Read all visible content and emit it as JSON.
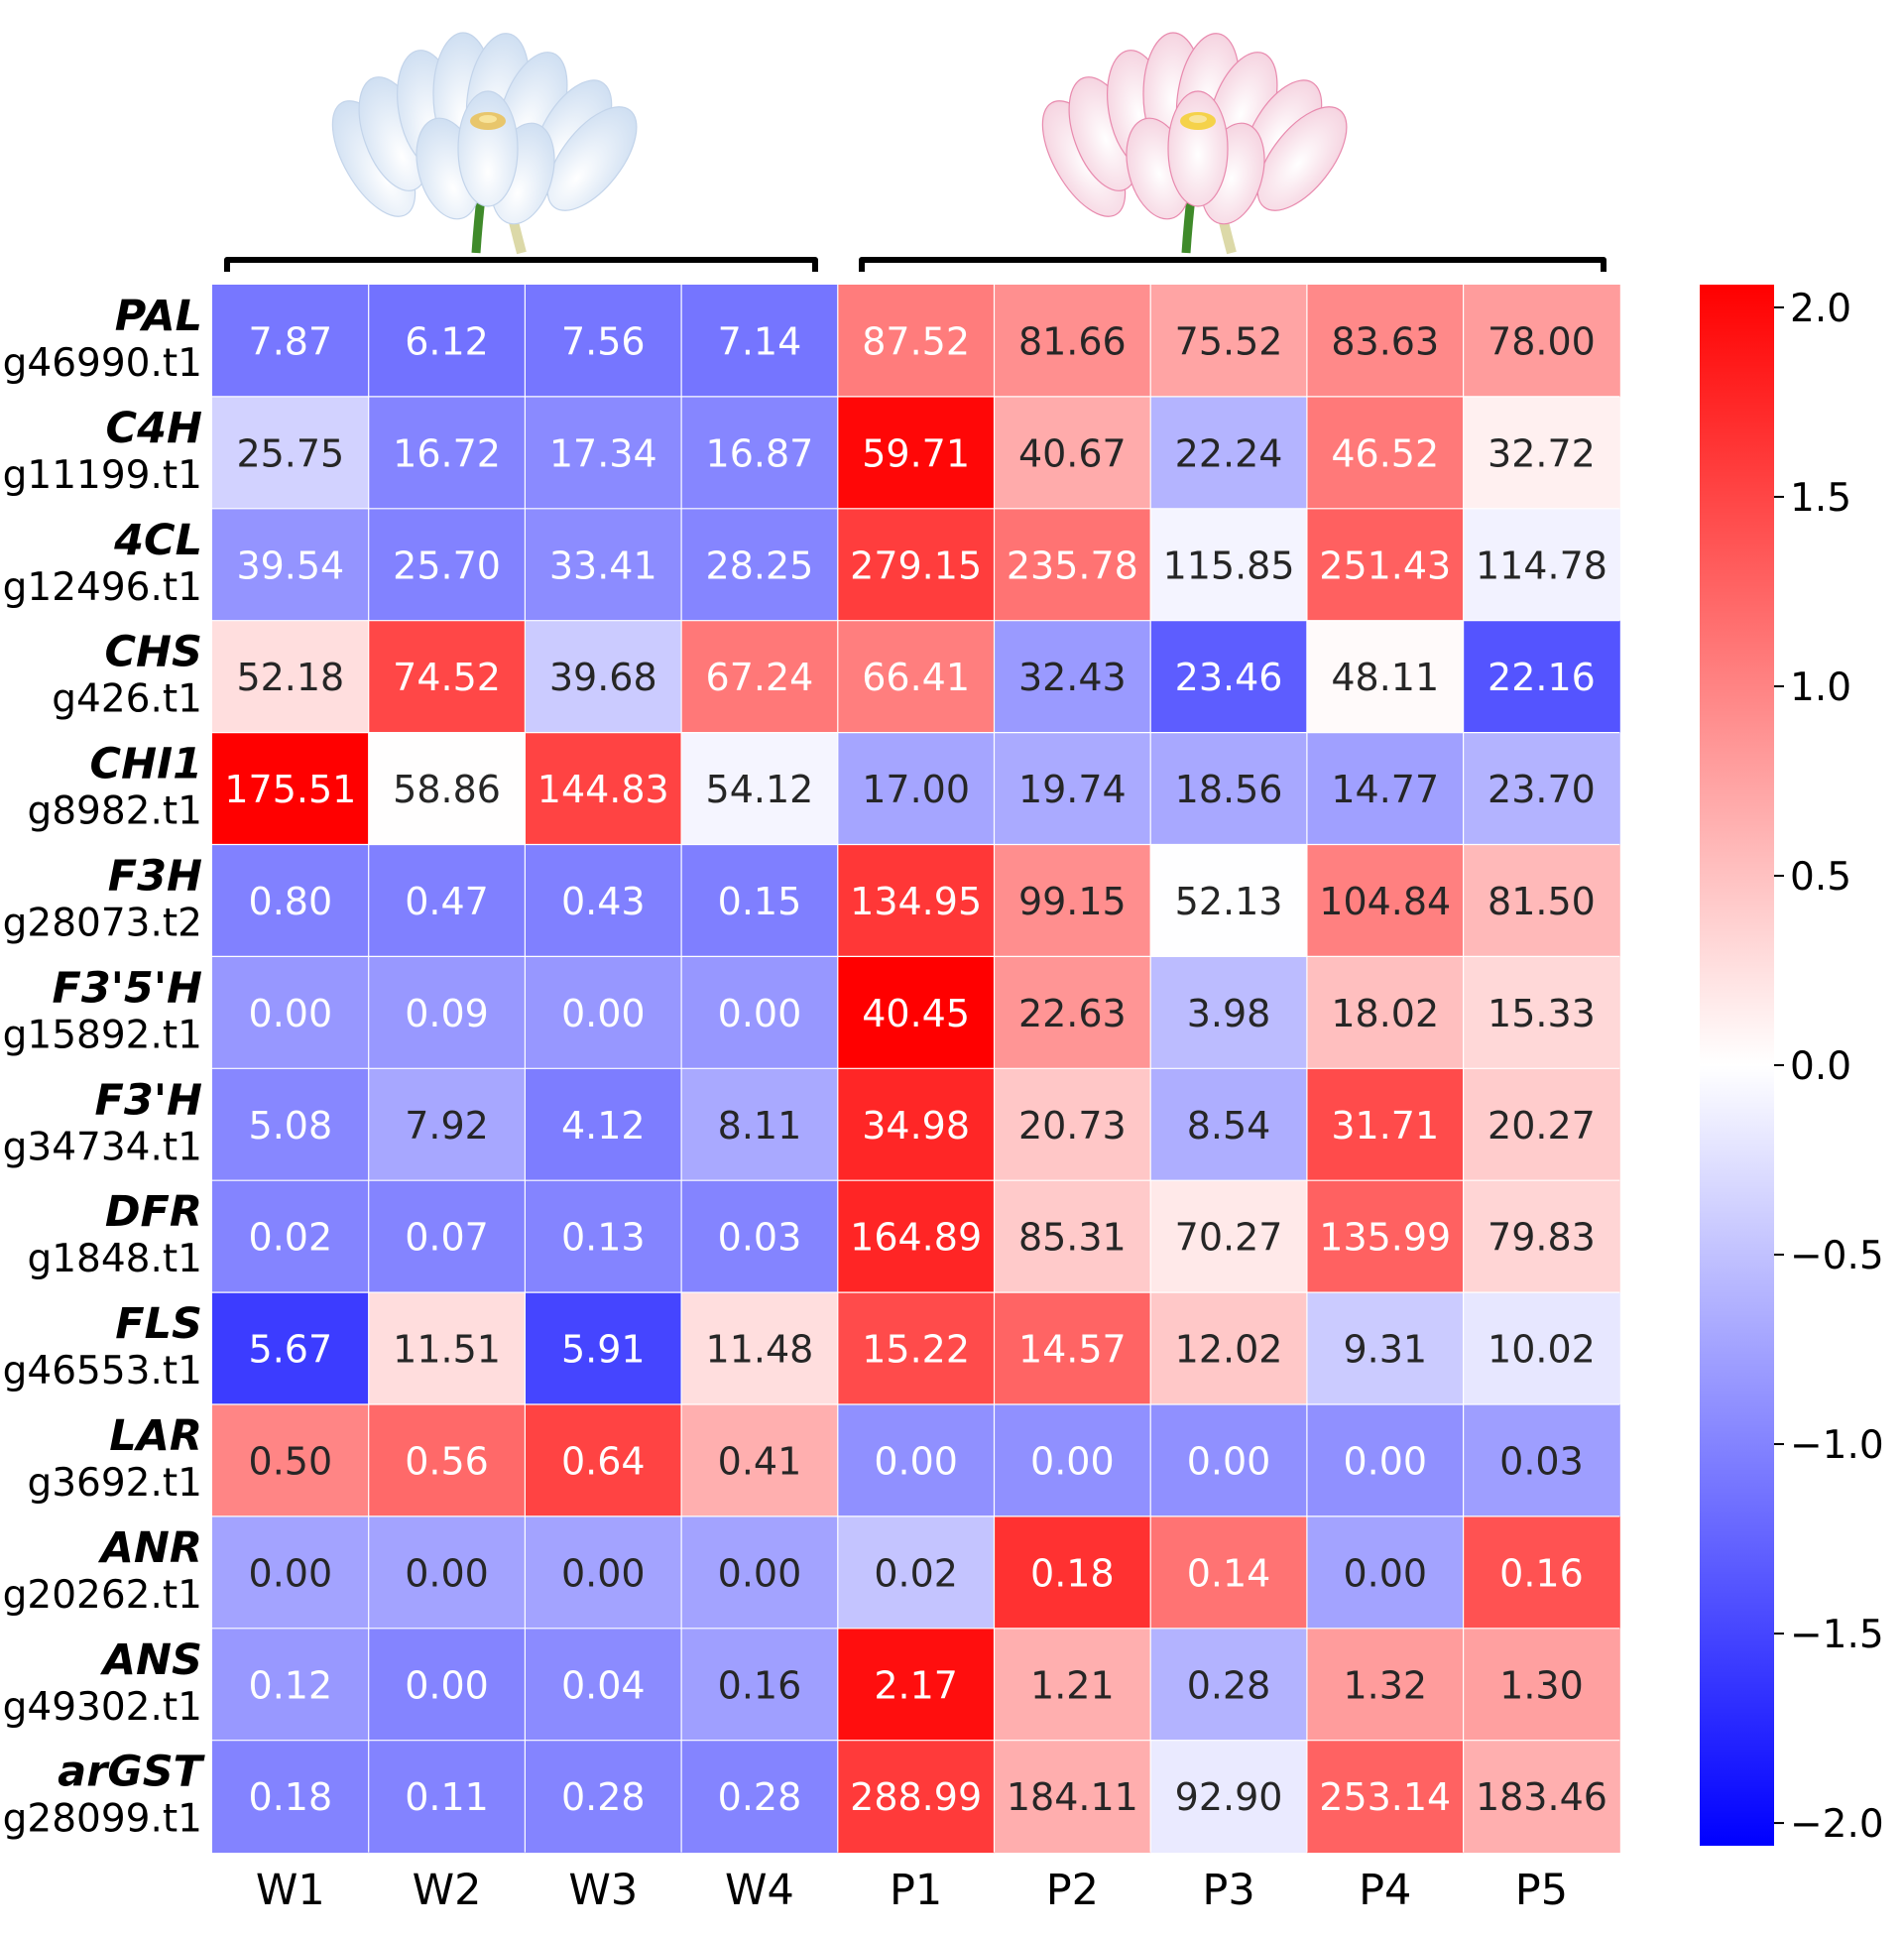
{
  "chart_data": {
    "type": "heatmap",
    "title": "",
    "xlabel": "",
    "ylabel": "",
    "columns": [
      "W1",
      "W2",
      "W3",
      "W4",
      "P1",
      "P2",
      "P3",
      "P4",
      "P5"
    ],
    "groups": [
      {
        "name": "white",
        "columns": [
          "W1",
          "W2",
          "W3",
          "W4"
        ],
        "image": "white-water-lily"
      },
      {
        "name": "pink",
        "columns": [
          "P1",
          "P2",
          "P3",
          "P4",
          "P5"
        ],
        "image": "pink-water-lily"
      }
    ],
    "rows": [
      {
        "gene": "PAL",
        "id": "g46990.t1"
      },
      {
        "gene": "C4H",
        "id": "g11199.t1"
      },
      {
        "gene": "4CL",
        "id": "g12496.t1"
      },
      {
        "gene": "CHS",
        "id": "g426.t1"
      },
      {
        "gene": "CHI1",
        "id": "g8982.t1"
      },
      {
        "gene": "F3H",
        "id": "g28073.t2"
      },
      {
        "gene": "F3'5'H",
        "id": "g15892.t1"
      },
      {
        "gene": "F3'H",
        "id": "g34734.t1"
      },
      {
        "gene": "DFR",
        "id": "g1848.t1"
      },
      {
        "gene": "FLS",
        "id": "g46553.t1"
      },
      {
        "gene": "LAR",
        "id": "g3692.t1"
      },
      {
        "gene": "ANR",
        "id": "g20262.t1"
      },
      {
        "gene": "ANS",
        "id": "g49302.t1"
      },
      {
        "gene": "arGST",
        "id": "g28099.t1"
      }
    ],
    "values": [
      [
        "7.87",
        "6.12",
        "7.56",
        "7.14",
        "87.52",
        "81.66",
        "75.52",
        "83.63",
        "78.00"
      ],
      [
        "25.75",
        "16.72",
        "17.34",
        "16.87",
        "59.71",
        "40.67",
        "22.24",
        "46.52",
        "32.72"
      ],
      [
        "39.54",
        "25.70",
        "33.41",
        "28.25",
        "279.15",
        "235.78",
        "115.85",
        "251.43",
        "114.78"
      ],
      [
        "52.18",
        "74.52",
        "39.68",
        "67.24",
        "66.41",
        "32.43",
        "23.46",
        "48.11",
        "22.16"
      ],
      [
        "175.51",
        "58.86",
        "144.83",
        "54.12",
        "17.00",
        "19.74",
        "18.56",
        "14.77",
        "23.70"
      ],
      [
        "0.80",
        "0.47",
        "0.43",
        "0.15",
        "134.95",
        "99.15",
        "52.13",
        "104.84",
        "81.50"
      ],
      [
        "0.00",
        "0.09",
        "0.00",
        "0.00",
        "40.45",
        "22.63",
        "3.98",
        "18.02",
        "15.33"
      ],
      [
        "5.08",
        "7.92",
        "4.12",
        "8.11",
        "34.98",
        "20.73",
        "8.54",
        "31.71",
        "20.27"
      ],
      [
        "0.02",
        "0.07",
        "0.13",
        "0.03",
        "164.89",
        "85.31",
        "70.27",
        "135.99",
        "79.83"
      ],
      [
        "5.67",
        "11.51",
        "5.91",
        "11.48",
        "15.22",
        "14.57",
        "12.02",
        "9.31",
        "10.02"
      ],
      [
        "0.50",
        "0.56",
        "0.64",
        "0.41",
        "0.00",
        "0.00",
        "0.00",
        "0.00",
        "0.03"
      ],
      [
        "0.00",
        "0.00",
        "0.00",
        "0.00",
        "0.02",
        "0.18",
        "0.14",
        "0.00",
        "0.16"
      ],
      [
        "0.12",
        "0.00",
        "0.04",
        "0.16",
        "2.17",
        "1.21",
        "0.28",
        "1.32",
        "1.30"
      ],
      [
        "0.18",
        "0.11",
        "0.28",
        "0.28",
        "288.99",
        "184.11",
        "92.90",
        "253.14",
        "183.46"
      ]
    ],
    "colorbar": {
      "colormap": "bwr",
      "range": [
        -2.06,
        2.06
      ],
      "ticks": [
        2.0,
        1.5,
        1.0,
        0.5,
        0.0,
        -0.5,
        -1.0,
        -1.5,
        -2.0
      ],
      "tick_labels": [
        "2.0",
        "1.5",
        "1.0",
        "0.5",
        "0.0",
        "−0.5",
        "−1.0",
        "−1.5",
        "−2.0"
      ]
    },
    "color_scale": "row z-score",
    "grid_lines": true
  }
}
